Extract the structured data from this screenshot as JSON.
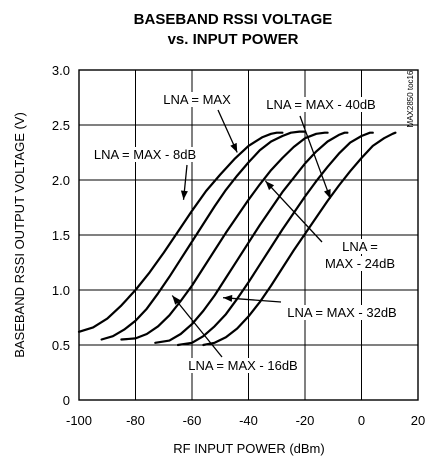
{
  "chart_data": {
    "type": "line",
    "title": "BASEBAND RSSI VOLTAGE",
    "subtitle": "vs. INPUT POWER",
    "xlabel": "RF INPUT POWER (dBm)",
    "ylabel": "BASEBAND RSSI OUTPUT VOLTAGE (V)",
    "side_label": "MAX2850 toc16",
    "xlim": [
      -100,
      20
    ],
    "ylim": [
      0,
      3.0
    ],
    "grid": true,
    "xticks": [
      "-100",
      "-80",
      "-60",
      "-40",
      "-20",
      "0",
      "20"
    ],
    "yticks": [
      "0",
      "0.5",
      "1.0",
      "1.5",
      "2.0",
      "2.5",
      "3.0"
    ],
    "series": [
      {
        "name": "LNA = MAX",
        "x": [
          -100,
          -95,
          -90,
          -85,
          -80,
          -75,
          -70,
          -65,
          -60,
          -55,
          -50,
          -45,
          -40,
          -35,
          -32,
          -30,
          -28
        ],
        "y": [
          0.62,
          0.66,
          0.74,
          0.86,
          1.0,
          1.16,
          1.34,
          1.53,
          1.72,
          1.9,
          2.05,
          2.19,
          2.31,
          2.39,
          2.42,
          2.43,
          2.43
        ]
      },
      {
        "name": "LNA = MAX - 8dB",
        "x": [
          -92,
          -88,
          -84,
          -80,
          -76,
          -72,
          -68,
          -64,
          -60,
          -56,
          -52,
          -48,
          -44,
          -40,
          -36,
          -32,
          -28,
          -25,
          -22,
          -20
        ],
        "y": [
          0.55,
          0.58,
          0.64,
          0.72,
          0.83,
          0.97,
          1.12,
          1.28,
          1.44,
          1.6,
          1.76,
          1.91,
          2.04,
          2.16,
          2.27,
          2.35,
          2.4,
          2.43,
          2.44,
          2.44
        ]
      },
      {
        "name": "LNA = MAX - 16dB",
        "x": [
          -85,
          -80,
          -76,
          -72,
          -68,
          -64,
          -60,
          -56,
          -52,
          -48,
          -44,
          -40,
          -36,
          -32,
          -28,
          -24,
          -20,
          -16,
          -13,
          -12
        ],
        "y": [
          0.55,
          0.56,
          0.6,
          0.67,
          0.77,
          0.9,
          1.04,
          1.2,
          1.36,
          1.52,
          1.67,
          1.82,
          1.96,
          2.09,
          2.2,
          2.3,
          2.38,
          2.42,
          2.43,
          2.43
        ]
      },
      {
        "name": "LNA = MAX - 24dB",
        "x": [
          -73,
          -68,
          -64,
          -60,
          -56,
          -52,
          -48,
          -44,
          -40,
          -36,
          -32,
          -28,
          -24,
          -20,
          -16,
          -12,
          -8,
          -6,
          -5
        ],
        "y": [
          0.52,
          0.54,
          0.6,
          0.69,
          0.81,
          0.95,
          1.11,
          1.27,
          1.43,
          1.59,
          1.74,
          1.89,
          2.02,
          2.15,
          2.26,
          2.35,
          2.41,
          2.43,
          2.43
        ]
      },
      {
        "name": "LNA = MAX - 32dB",
        "x": [
          -65,
          -60,
          -56,
          -52,
          -48,
          -44,
          -40,
          -36,
          -32,
          -28,
          -24,
          -20,
          -16,
          -12,
          -8,
          -4,
          0,
          3,
          4
        ],
        "y": [
          0.5,
          0.52,
          0.58,
          0.67,
          0.78,
          0.92,
          1.07,
          1.23,
          1.39,
          1.55,
          1.7,
          1.85,
          1.99,
          2.12,
          2.24,
          2.34,
          2.4,
          2.43,
          2.43
        ]
      },
      {
        "name": "LNA = MAX - 40dB",
        "x": [
          -56,
          -52,
          -48,
          -44,
          -40,
          -36,
          -32,
          -28,
          -24,
          -20,
          -16,
          -12,
          -8,
          -4,
          0,
          4,
          8,
          11,
          12
        ],
        "y": [
          0.5,
          0.52,
          0.57,
          0.65,
          0.76,
          0.89,
          1.04,
          1.2,
          1.36,
          1.51,
          1.66,
          1.81,
          1.95,
          2.08,
          2.2,
          2.31,
          2.38,
          2.42,
          2.43
        ]
      }
    ],
    "annotations": [
      {
        "lines": [
          "LNA = MAX"
        ],
        "target": [
          -44,
          2.25
        ]
      },
      {
        "lines": [
          "LNA = MAX - 40dB"
        ],
        "target": [
          -11,
          1.83
        ]
      },
      {
        "lines": [
          "LNA = MAX - 8dB"
        ],
        "target": [
          -63,
          1.82
        ]
      },
      {
        "lines": [
          "LNA =",
          "MAX - 24dB"
        ],
        "target": [
          -34,
          1.99
        ]
      },
      {
        "lines": [
          "LNA = MAX - 32dB"
        ],
        "target": [
          -49,
          0.93
        ]
      },
      {
        "lines": [
          "LNA = MAX - 16dB"
        ],
        "target": [
          -67,
          0.95
        ]
      }
    ]
  }
}
